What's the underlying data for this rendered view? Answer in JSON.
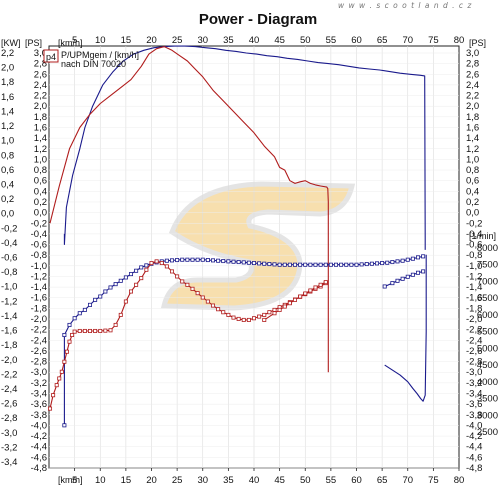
{
  "watermark": "w w w . s c o o t l a n d . c z",
  "chart_data": {
    "type": "line",
    "title": "Power - Diagram",
    "x_axis": {
      "unit_label": "[km/h]",
      "range": [
        0,
        80
      ],
      "ticks": [
        "5",
        "10",
        "15",
        "20",
        "25",
        "30",
        "35",
        "40",
        "45",
        "50",
        "55",
        "60",
        "65",
        "70",
        "75",
        "80"
      ]
    },
    "y_left_kw": {
      "unit_label": "[KW]",
      "range": [
        -3.4,
        2.2
      ],
      "ticks": [
        "2,2",
        "2,0",
        "1,8",
        "1,6",
        "1,4",
        "1,2",
        "1,0",
        "0,8",
        "0,6",
        "0,4",
        "0,2",
        "0,0",
        "-0,2",
        "-0,4",
        "-0,6",
        "-0,8",
        "-1,0",
        "-1,2",
        "-1,4",
        "-1,6",
        "-1,8",
        "-2,0",
        "-2,2",
        "-2,4",
        "-2,6",
        "-2,8",
        "-3,0",
        "-3,2",
        "-3,4"
      ]
    },
    "y_left_ps": {
      "unit_label": "[PS]",
      "range": [
        -4.8,
        3.0
      ],
      "ticks": [
        "3,0",
        "2,8",
        "2,6",
        "2,4",
        "2,2",
        "2,0",
        "1,8",
        "1,6",
        "1,4",
        "1,2",
        "1,0",
        "0,8",
        "0,6",
        "0,4",
        "0,2",
        "0,0",
        "-0,2",
        "-0,4",
        "-0,6",
        "-0,8",
        "-1,0",
        "-1,2",
        "-1,4",
        "-1,6",
        "-1,8",
        "-2,0",
        "-2,2",
        "-2,4",
        "-2,6",
        "-2,8",
        "-3,0",
        "-3,2",
        "-3,4",
        "-3,6",
        "-3,8",
        "-4,0",
        "-4,2",
        "-4,4",
        "-4,6",
        "-4,8"
      ]
    },
    "y_right_ps": {
      "unit_label": "[PS]",
      "range": [
        -4.8,
        3.0
      ],
      "ticks": [
        "3,0",
        "2,8",
        "2,6",
        "2,4",
        "2,2",
        "2,0",
        "1,8",
        "1,6",
        "1,4",
        "1,2",
        "1,0",
        "0,8",
        "0,6",
        "0,4",
        "0,2",
        "0,0",
        "-0,2",
        "-0,4",
        "-0,6",
        "-0,8",
        "-1,0",
        "-1,2",
        "-1,4",
        "-1,6",
        "-1,8",
        "-2,0",
        "-2,2",
        "-2,4",
        "-2,6",
        "-2,8",
        "-3,0",
        "-3,2",
        "-3,4",
        "-3,6",
        "-3,8",
        "-4,0",
        "-4,2",
        "-4,4",
        "-4,6",
        "-4,8"
      ]
    },
    "y_right_rpm": {
      "unit_label": "[1/min]",
      "range": [
        2500,
        8000
      ],
      "ticks": [
        "8000",
        "7500",
        "7000",
        "6500",
        "6000",
        "5500",
        "5000",
        "4500",
        "4000",
        "3500",
        "3000",
        "2500"
      ]
    },
    "legend": {
      "marker": "p4",
      "line1": "P/UPMgem / [km/h]",
      "line2": "nach DIN 70020"
    },
    "series": [
      {
        "axis": "ps",
        "color": "#1a1a8c",
        "markers": false,
        "x": [
          3,
          3,
          3.4,
          4.6,
          6,
          7,
          8.5,
          10.5,
          12.5,
          14.5,
          16.5,
          18.5,
          20.5,
          22.5,
          24.5,
          26.5,
          28.5,
          30.5,
          32.5,
          34.5,
          36.5,
          38.5,
          40.5,
          42.5,
          44.5,
          46.5,
          48.5,
          50.5,
          52.5,
          54.5,
          56.5,
          58.5,
          60.5,
          62.5,
          64.5,
          66.5,
          68.5,
          70.5,
          72.5,
          73.3,
          73.4,
          73.4
        ],
        "y": [
          -0.4,
          -0.6,
          0.1,
          0.7,
          1.2,
          1.6,
          2.0,
          2.4,
          2.65,
          2.85,
          2.98,
          3.05,
          3.1,
          3.12,
          3.13,
          3.13,
          3.12,
          3.1,
          3.08,
          3.05,
          3.03,
          3.0,
          2.98,
          2.95,
          2.93,
          2.9,
          2.88,
          2.85,
          2.82,
          2.8,
          2.78,
          2.75,
          2.72,
          2.7,
          2.68,
          2.65,
          2.62,
          2.6,
          2.58,
          2.57,
          -0.5,
          -0.7
        ]
      },
      {
        "axis": "ps",
        "color": "#b01c1c",
        "markers": false,
        "x": [
          0.2,
          2,
          4,
          6,
          8,
          10,
          12,
          14,
          16,
          18,
          19.5,
          21,
          22.5,
          24,
          25.5,
          27,
          28.5,
          30,
          32,
          34,
          36,
          38,
          40,
          42,
          44,
          45,
          46,
          47,
          48,
          49,
          50,
          51,
          52,
          53,
          54.2,
          54.4,
          54.5,
          54.5
        ],
        "y": [
          -0.2,
          0.5,
          1.2,
          1.6,
          1.85,
          2.05,
          2.2,
          2.35,
          2.5,
          2.75,
          2.98,
          3.08,
          3.12,
          3.05,
          2.95,
          2.85,
          2.7,
          2.55,
          2.3,
          2.1,
          1.9,
          1.7,
          1.5,
          1.25,
          1.05,
          0.85,
          0.8,
          0.6,
          0.55,
          0.58,
          0.6,
          0.55,
          0.52,
          0.5,
          0.48,
          0.45,
          0.2,
          -3.0
        ]
      },
      {
        "axis": "rpm",
        "color": "#1a1a8c",
        "markers": true,
        "x": [
          3,
          3,
          4,
          5,
          6,
          7,
          8,
          9,
          10,
          11,
          12,
          13,
          14,
          15,
          16,
          17,
          18,
          19,
          20,
          21,
          22,
          23,
          24,
          25,
          26,
          27,
          28,
          29,
          30,
          31,
          32,
          33,
          34,
          35,
          36,
          37,
          38,
          39,
          40,
          41,
          42,
          43,
          44,
          45,
          46,
          47,
          48,
          49,
          50,
          51,
          52,
          53,
          54,
          55,
          56,
          57,
          58,
          59,
          60,
          61,
          62,
          63,
          64,
          65,
          66,
          67,
          68,
          69,
          70,
          71,
          72,
          73
        ],
        "y": [
          2700,
          5400,
          5700,
          5900,
          6050,
          6150,
          6300,
          6450,
          6550,
          6700,
          6820,
          6920,
          7020,
          7120,
          7220,
          7320,
          7420,
          7480,
          7530,
          7570,
          7600,
          7620,
          7630,
          7640,
          7650,
          7650,
          7650,
          7650,
          7650,
          7640,
          7630,
          7620,
          7610,
          7600,
          7590,
          7580,
          7570,
          7560,
          7550,
          7540,
          7530,
          7520,
          7510,
          7500,
          7500,
          7500,
          7500,
          7500,
          7500,
          7500,
          7500,
          7500,
          7500,
          7500,
          7500,
          7500,
          7500,
          7500,
          7500,
          7510,
          7520,
          7530,
          7540,
          7550,
          7560,
          7580,
          7600,
          7620,
          7650,
          7680,
          7720,
          7750
        ]
      },
      {
        "axis": "rpm",
        "color": "#1a1a8c",
        "markers": true,
        "x": [
          65.5,
          67,
          68,
          69,
          70,
          71,
          72,
          73
        ],
        "y": [
          6850,
          6950,
          7020,
          7080,
          7140,
          7200,
          7260,
          7300
        ]
      },
      {
        "axis": "rpm",
        "color": "#1a1a8c",
        "markers": false,
        "x": [
          65.5,
          67,
          68.5,
          70,
          71,
          71.8,
          72.5,
          73,
          73.4,
          73.6,
          73.6
        ],
        "y": [
          4500,
          4350,
          4200,
          4000,
          3800,
          3650,
          3500,
          3420,
          3600,
          5500,
          7800
        ]
      },
      {
        "axis": "rpm",
        "color": "#b01c1c",
        "markers": true,
        "x": [
          0.2,
          0.8,
          1.5,
          2,
          2.5,
          3,
          3.5,
          4,
          4.5,
          5,
          6,
          7,
          8,
          9,
          10,
          11,
          12,
          13,
          14,
          15,
          16,
          17,
          18,
          19,
          20,
          21,
          22,
          23,
          24,
          25,
          26,
          27,
          28,
          29,
          30,
          31,
          32,
          33,
          34,
          35,
          36,
          37,
          38,
          39,
          40,
          41,
          42,
          43,
          44,
          45,
          46,
          47,
          48,
          49,
          50,
          51,
          52,
          53,
          54
        ],
        "y": [
          3200,
          3600,
          3900,
          4100,
          4300,
          4600,
          4900,
          5200,
          5400,
          5500,
          5520,
          5520,
          5520,
          5520,
          5520,
          5530,
          5540,
          5700,
          6000,
          6400,
          6700,
          6900,
          7100,
          7350,
          7550,
          7600,
          7550,
          7450,
          7300,
          7150,
          7000,
          6900,
          6780,
          6650,
          6520,
          6400,
          6280,
          6170,
          6080,
          6000,
          5920,
          5880,
          5850,
          5850,
          5900,
          5950,
          6000,
          6080,
          6150,
          6230,
          6300,
          6380,
          6460,
          6540,
          6620,
          6700,
          6780,
          6850,
          6950
        ]
      },
      {
        "axis": "rpm",
        "color": "#b01c1c",
        "markers": true,
        "x": [
          42,
          44,
          45,
          46,
          47,
          48,
          49,
          50,
          51,
          52,
          53,
          54
        ],
        "y": [
          5850,
          6050,
          6150,
          6250,
          6350,
          6450,
          6550,
          6640,
          6730,
          6820,
          6900,
          6980
        ]
      }
    ]
  }
}
